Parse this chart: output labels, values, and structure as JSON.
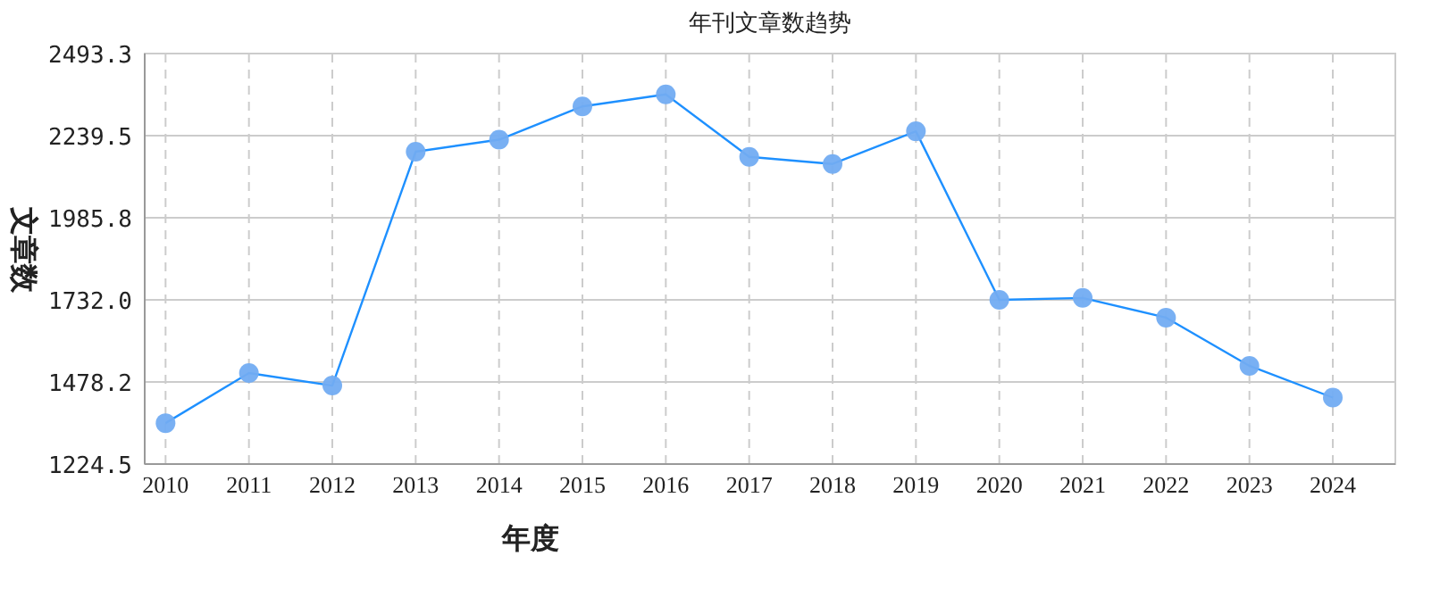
{
  "chart_data": {
    "type": "line",
    "title": "年刊文章数趋势",
    "xlabel": "年度",
    "ylabel": "文章数",
    "categories": [
      "2010",
      "2011",
      "2012",
      "2013",
      "2014",
      "2015",
      "2016",
      "2017",
      "2018",
      "2019",
      "2020",
      "2021",
      "2022",
      "2023",
      "2024"
    ],
    "series": [
      {
        "color": "#1e90ff",
        "values": [
          1351,
          1506,
          1467,
          2190,
          2227,
          2330,
          2367,
          2174,
          2152,
          2253,
          1732,
          1738,
          1677,
          1528,
          1430
        ]
      }
    ],
    "ylim": [
      1224.5,
      2493.3
    ],
    "yticks": [
      {
        "value": 1224.5,
        "label": "1224.5"
      },
      {
        "value": 1478.2,
        "label": "1478.2"
      },
      {
        "value": 1732.0,
        "label": "1732.0"
      },
      {
        "value": 1985.8,
        "label": "1985.8"
      },
      {
        "value": 2239.5,
        "label": "2239.5"
      },
      {
        "value": 2493.3,
        "label": "2493.3"
      }
    ],
    "grid": true,
    "marker": "circle",
    "line_style": "solid"
  }
}
